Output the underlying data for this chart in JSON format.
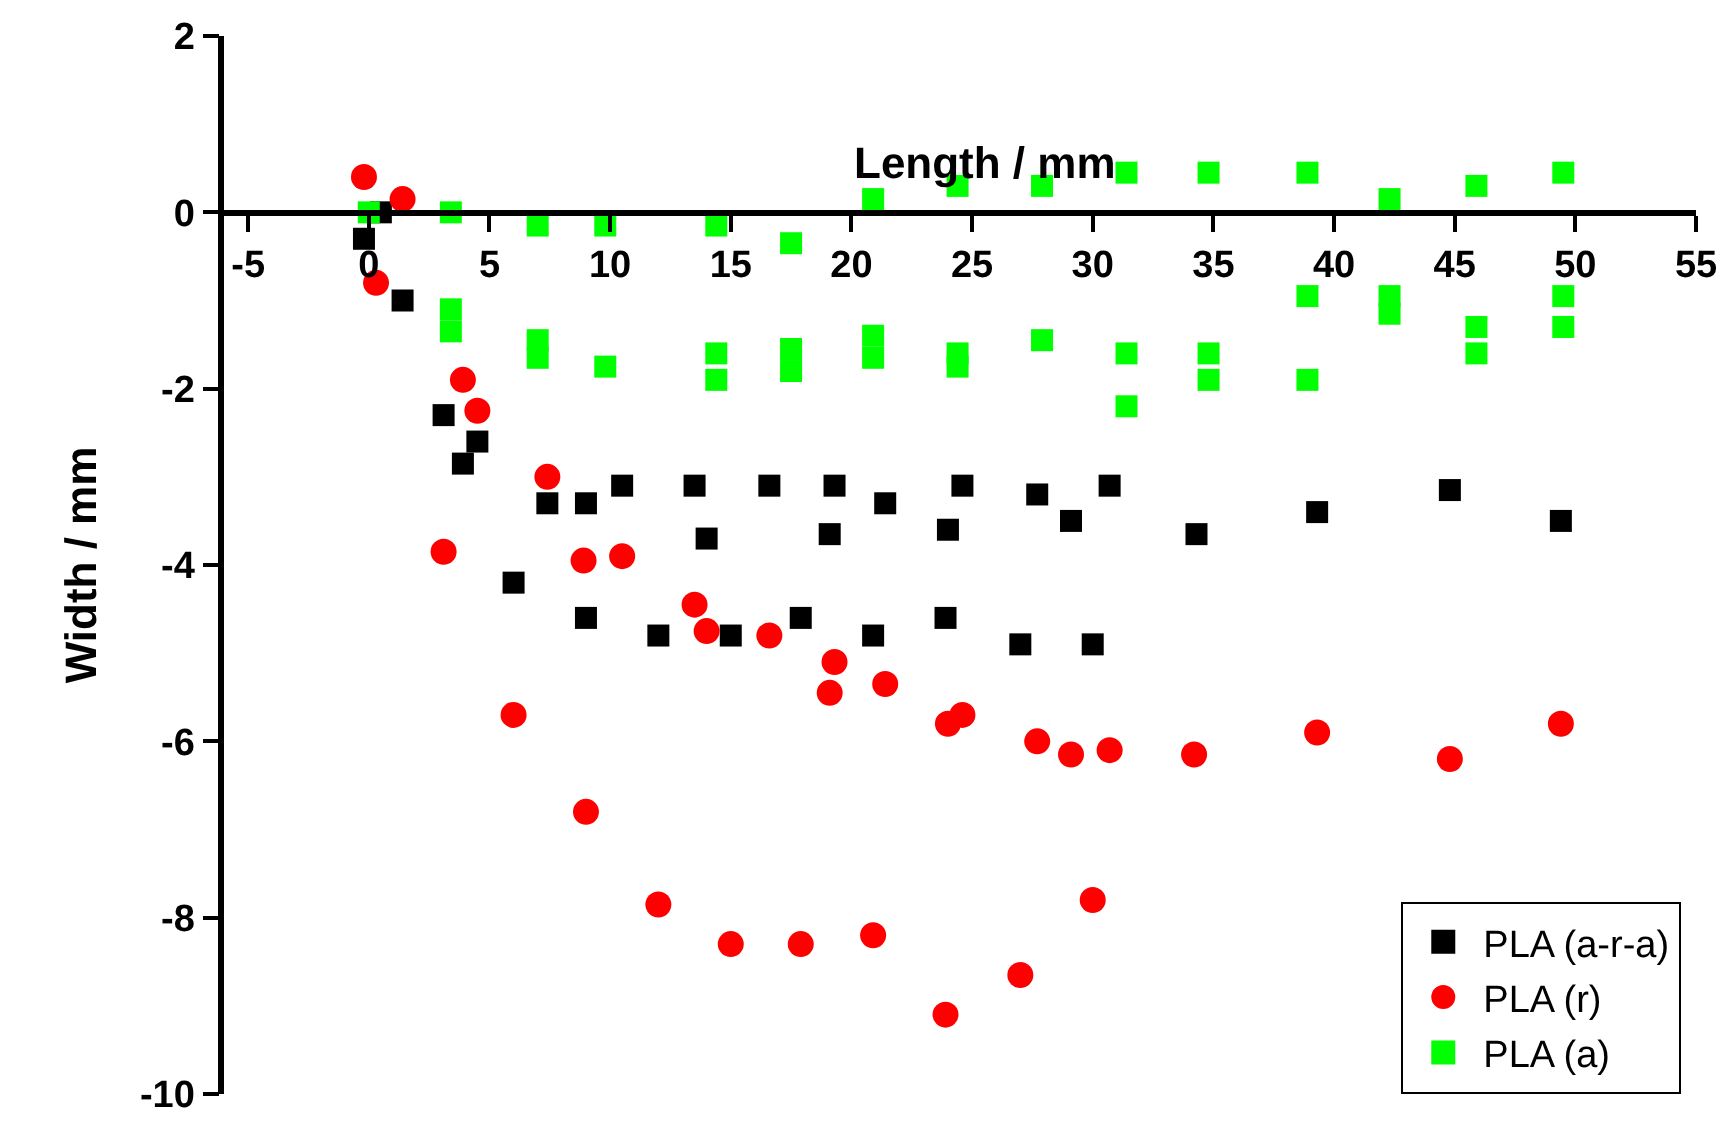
{
  "chart_data": {
    "type": "scatter",
    "xlabel": "Length / mm",
    "ylabel": "Width / mm",
    "xlim": [
      -6,
      55
    ],
    "xticks": [
      -5,
      0,
      5,
      10,
      15,
      20,
      25,
      30,
      35,
      40,
      45,
      50,
      55
    ],
    "ylim": [
      -10,
      2
    ],
    "yticks": [
      -10,
      -8,
      -6,
      -4,
      -2,
      0,
      2
    ],
    "grid": false,
    "legend": "bottom right",
    "series": [
      {
        "name": "PLA (a-r-a)",
        "color": "#000000",
        "marker": "square",
        "x": [
          -0.2,
          0.5,
          1.4,
          3.1,
          3.9,
          4.5,
          6.0,
          7.4,
          9.0,
          10.5,
          13.5,
          14.0,
          16.6,
          19.1,
          19.3,
          21.4,
          24.0,
          24.6,
          27.7,
          29.1,
          30.7,
          34.3,
          39.3,
          44.8,
          49.4,
          9.0,
          12.0,
          15.0,
          17.9,
          20.9,
          23.9,
          27.0,
          30.0
        ],
        "values": [
          -0.3,
          0,
          -1.0,
          -2.3,
          -2.85,
          -2.6,
          -4.2,
          -3.3,
          -3.3,
          -3.1,
          -3.1,
          -3.7,
          -3.1,
          -3.65,
          -3.1,
          -3.3,
          -3.6,
          -3.1,
          -3.2,
          -3.5,
          -3.1,
          -3.65,
          -3.4,
          -3.15,
          -3.5,
          -4.6,
          -4.8,
          -4.8,
          -4.6,
          -4.8,
          -4.6,
          -4.9,
          -4.9
        ]
      },
      {
        "name": "PLA (r)",
        "color": "#ff0000",
        "marker": "circle",
        "x": [
          -0.2,
          1.4,
          0.3,
          3.9,
          4.5,
          7.4,
          3.1,
          8.9,
          10.5,
          6.0,
          13.5,
          14.0,
          16.6,
          19.3,
          19.1,
          21.4,
          24.0,
          24.6,
          27.7,
          29.1,
          30.7,
          34.2,
          39.3,
          44.8,
          49.4,
          9.0,
          12.0,
          15.0,
          17.9,
          20.9,
          23.9,
          27.0,
          30.0
        ],
        "values": [
          0.4,
          0.15,
          -0.8,
          -1.9,
          -2.25,
          -3.0,
          -3.85,
          -3.95,
          -3.9,
          -5.7,
          -4.45,
          -4.75,
          -4.8,
          -5.1,
          -5.45,
          -5.35,
          -5.8,
          -5.7,
          -6.0,
          -6.15,
          -6.1,
          -6.15,
          -5.9,
          -6.2,
          -5.8,
          -6.8,
          -7.85,
          -8.3,
          -8.3,
          -8.2,
          -9.1,
          -8.65,
          -7.8
        ]
      },
      {
        "name": "PLA (a)",
        "color": "#00ff00",
        "marker": "square",
        "x": [
          0,
          3.4,
          7.0,
          9.8,
          14.4,
          17.5,
          20.9,
          24.4,
          27.9,
          31.4,
          34.8,
          38.9,
          42.3,
          45.9,
          49.5,
          3.4,
          3.4,
          7.0,
          7.0,
          9.8,
          14.4,
          14.4,
          17.5,
          17.5,
          20.9,
          20.9,
          24.4,
          24.4,
          27.9,
          31.4,
          31.4,
          34.8,
          34.8,
          38.9,
          38.9,
          42.3,
          42.3,
          45.9,
          45.9,
          49.5,
          49.5
        ],
        "values": [
          0,
          0,
          -0.15,
          -0.15,
          -0.15,
          -0.35,
          0.15,
          0.3,
          0.3,
          0.45,
          0.45,
          0.45,
          0.15,
          0.3,
          0.45,
          -1.1,
          -1.35,
          -1.45,
          -1.65,
          -1.75,
          -1.6,
          -1.9,
          -1.55,
          -1.8,
          -1.4,
          -1.65,
          -1.6,
          -1.75,
          -1.45,
          -1.6,
          -2.2,
          -1.6,
          -1.9,
          -0.95,
          -1.9,
          -0.95,
          -1.15,
          -1.3,
          -1.6,
          -0.95,
          -1.3
        ]
      }
    ]
  }
}
